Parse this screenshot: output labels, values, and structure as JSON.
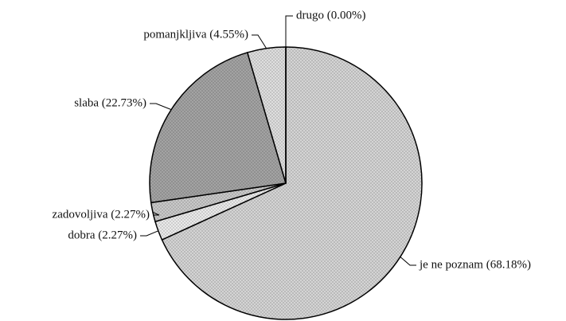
{
  "chart_data": {
    "type": "pie",
    "values": [
      68.18,
      2.27,
      2.27,
      22.73,
      4.55,
      0.0
    ],
    "value_labels": [
      "je ne poznam (68.18%)",
      "dobra (2.27%)",
      "zadovoljiva (2.27%)",
      "slaba (22.73%)",
      "pomanjkljiva (4.55%)",
      "drugo (0.00%)"
    ],
    "colors": [
      "#dcdcdc",
      "#f2f2f2",
      "#d0d0d0",
      "#a9a9a9",
      "#e6e6e6",
      "#ffffff"
    ]
  }
}
